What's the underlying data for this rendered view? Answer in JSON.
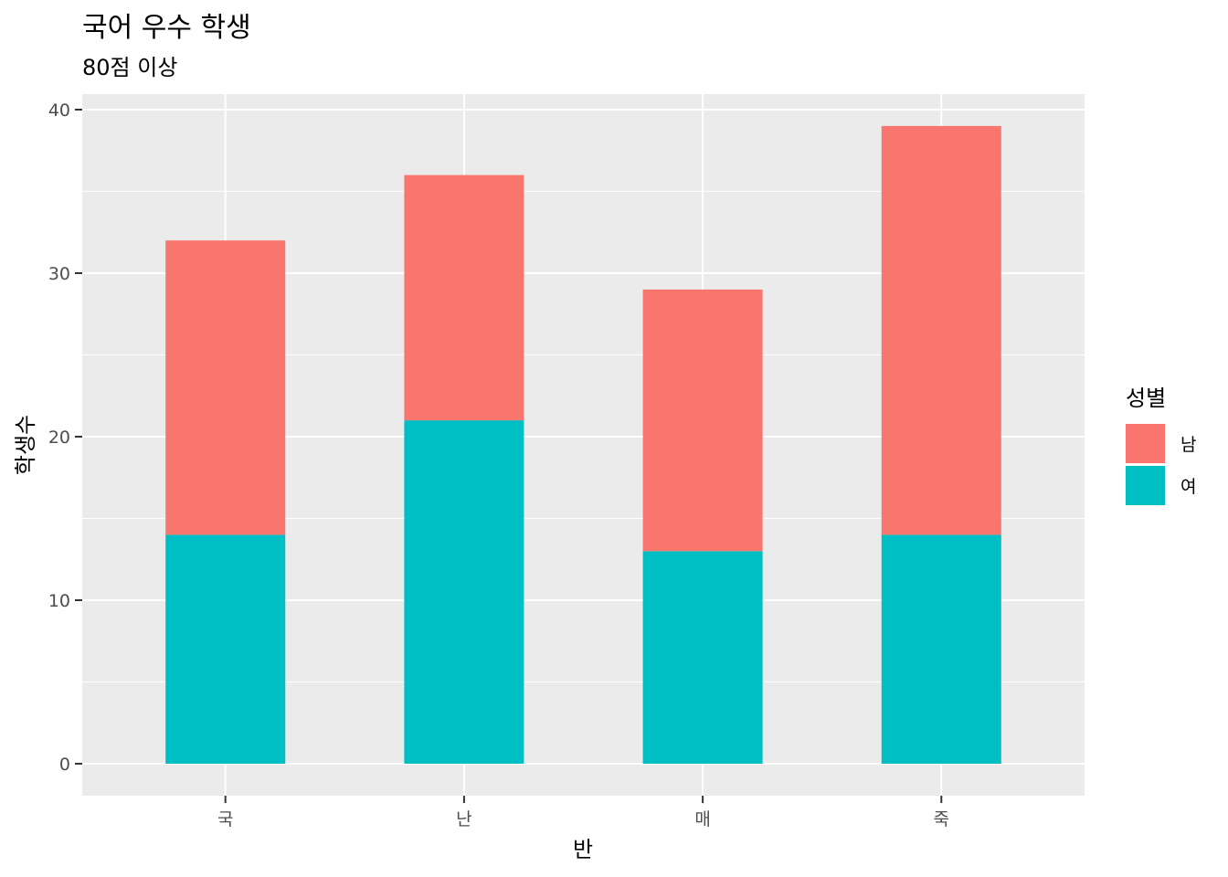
{
  "chart_data": {
    "type": "bar",
    "stacked": true,
    "title": "국어 우수 학생",
    "subtitle": "80점 이상",
    "xlabel": "반",
    "ylabel": "학생수",
    "categories": [
      "국",
      "난",
      "매",
      "죽"
    ],
    "series": [
      {
        "name": "남",
        "color": "#F8766D",
        "values": [
          18,
          15,
          16,
          25
        ]
      },
      {
        "name": "여",
        "color": "#00BFC4",
        "values": [
          14,
          21,
          13,
          14
        ]
      }
    ],
    "ylim": [
      0,
      40
    ],
    "yticks": [
      0,
      10,
      20,
      30,
      40
    ],
    "grid": true,
    "panel_background": "#EBEBEB",
    "legend": {
      "title": "성별",
      "placement": "right"
    }
  }
}
